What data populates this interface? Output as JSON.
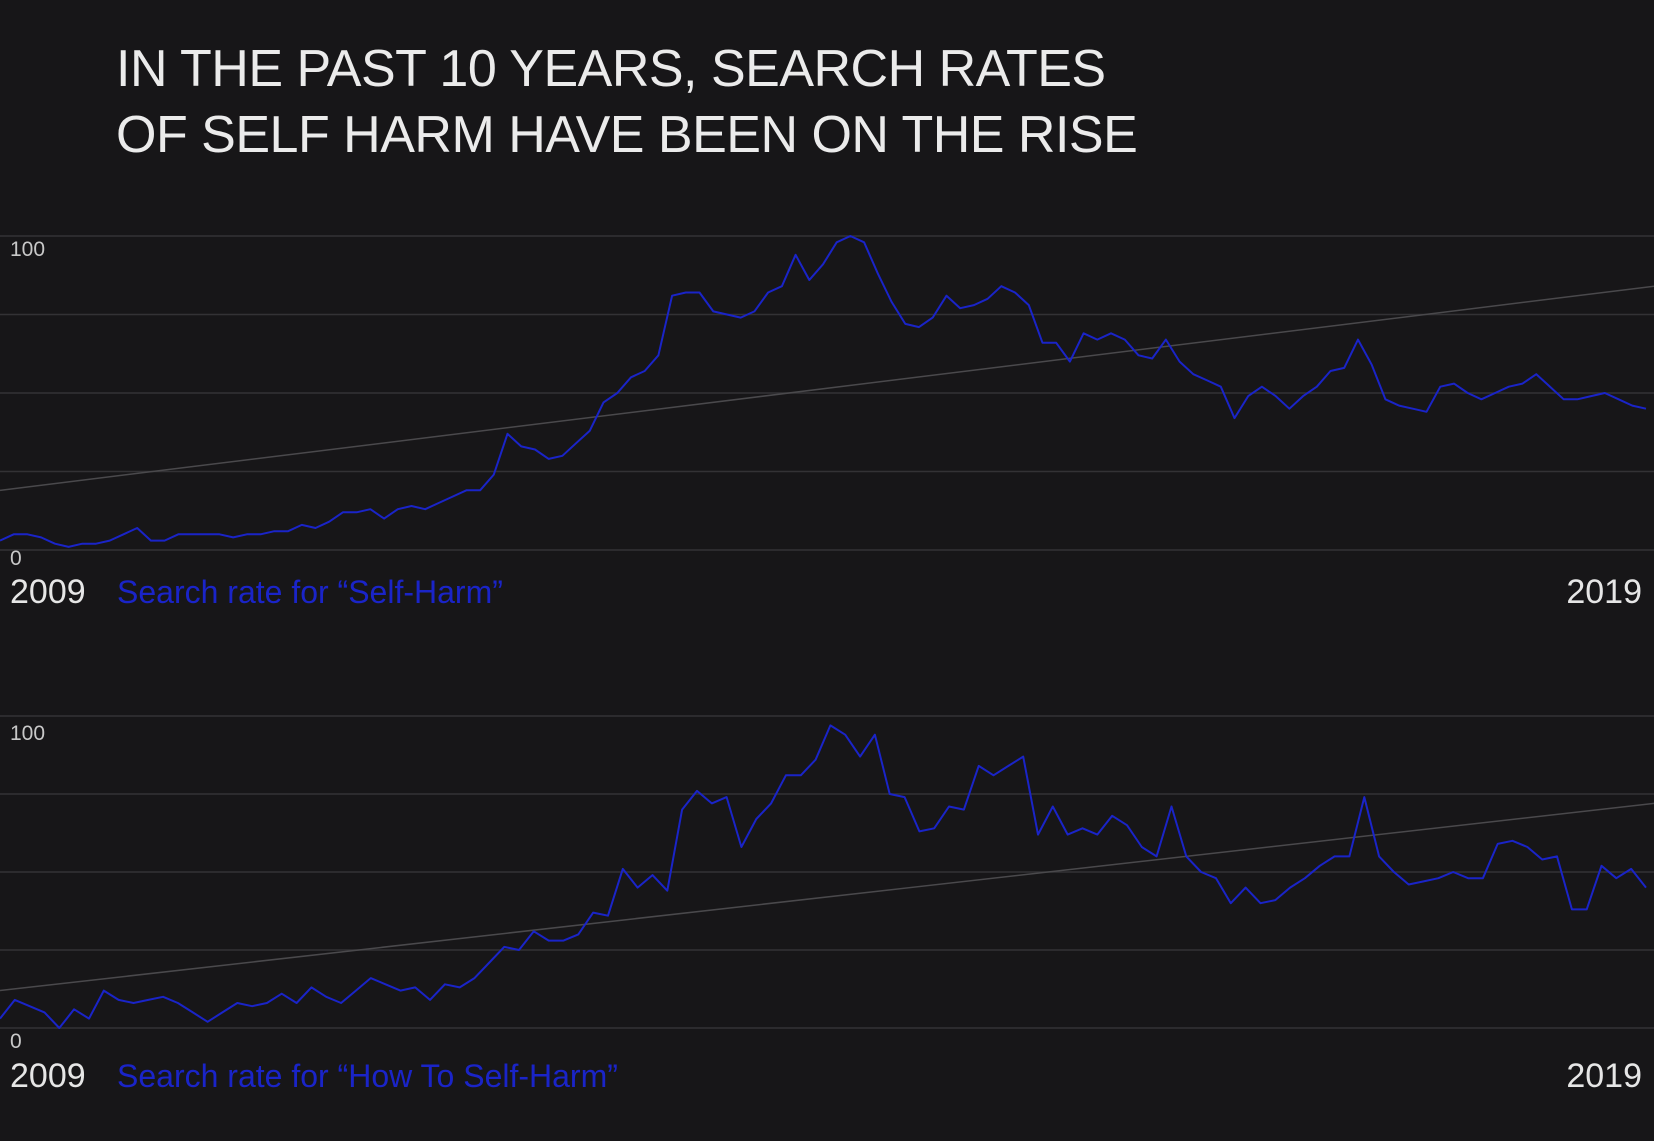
{
  "title": "IN THE PAST 10 YEARS, SEARCH RATES OF SELF HARM HAVE BEEN ON THE RISE",
  "colors": {
    "background": "#171618",
    "line": "#1a24c8",
    "grid": "#333235",
    "trend": "#4a494c",
    "text": "#e6e6e6",
    "tick_text": "#c8c8c8"
  },
  "chart_data": [
    {
      "type": "line",
      "series_label": "Search rate for “Self-Harm”",
      "x_start_label": "2009",
      "x_end_label": "2019",
      "xlim": [
        2009,
        2019.25
      ],
      "ylim": [
        0,
        100
      ],
      "y_ticks": [
        "100",
        "0"
      ],
      "grid": true,
      "trend": {
        "start": 19,
        "end": 84
      },
      "series": [
        {
          "values": [
            3,
            5,
            5,
            4,
            2,
            1,
            2,
            2,
            3,
            5,
            7,
            3,
            3,
            5,
            5,
            5,
            5,
            4,
            5,
            5,
            6,
            6,
            8,
            7,
            9,
            12,
            12,
            13,
            10,
            13,
            14,
            13,
            15,
            17,
            19,
            19,
            24,
            37,
            33,
            32,
            29,
            30,
            34,
            38,
            47,
            50,
            55,
            57,
            62,
            81,
            82,
            82,
            76,
            75,
            74,
            76,
            82,
            84,
            94,
            86,
            91,
            98,
            100,
            98,
            88,
            79,
            72,
            71,
            74,
            81,
            77,
            78,
            80,
            84,
            82,
            78,
            66,
            66,
            60,
            69,
            67,
            69,
            67,
            62,
            61,
            67,
            60,
            56,
            54,
            52,
            42,
            49,
            52,
            49,
            45,
            49,
            52,
            57,
            58,
            67,
            59,
            48,
            46,
            45,
            44,
            52,
            53,
            50,
            48,
            50,
            52,
            53,
            56,
            52,
            48,
            48,
            49,
            50,
            48,
            46,
            45
          ]
        }
      ]
    },
    {
      "type": "line",
      "series_label": "Search rate for “How To Self-Harm”",
      "x_start_label": "2009",
      "x_end_label": "2019",
      "xlim": [
        2009,
        2019.25
      ],
      "ylim": [
        0,
        100
      ],
      "y_ticks": [
        "100",
        "0"
      ],
      "grid": true,
      "trend": {
        "start": 12,
        "end": 72
      },
      "series": [
        {
          "values": [
            3,
            9,
            7,
            5,
            0,
            6,
            3,
            12,
            9,
            8,
            9,
            10,
            8,
            5,
            2,
            5,
            8,
            7,
            8,
            11,
            8,
            13,
            10,
            8,
            12,
            16,
            14,
            12,
            13,
            9,
            14,
            13,
            16,
            21,
            26,
            25,
            31,
            28,
            28,
            30,
            37,
            36,
            51,
            45,
            49,
            44,
            70,
            76,
            72,
            74,
            58,
            67,
            72,
            81,
            81,
            86,
            97,
            94,
            87,
            94,
            75,
            74,
            63,
            64,
            71,
            70,
            84,
            81,
            84,
            87,
            62,
            71,
            62,
            64,
            62,
            68,
            65,
            58,
            55,
            71,
            55,
            50,
            48,
            40,
            45,
            40,
            41,
            45,
            48,
            52,
            55,
            55,
            74,
            55,
            50,
            46,
            47,
            48,
            50,
            48,
            48,
            59,
            60,
            58,
            54,
            55,
            38,
            38,
            52,
            48,
            51,
            45
          ]
        }
      ]
    }
  ]
}
